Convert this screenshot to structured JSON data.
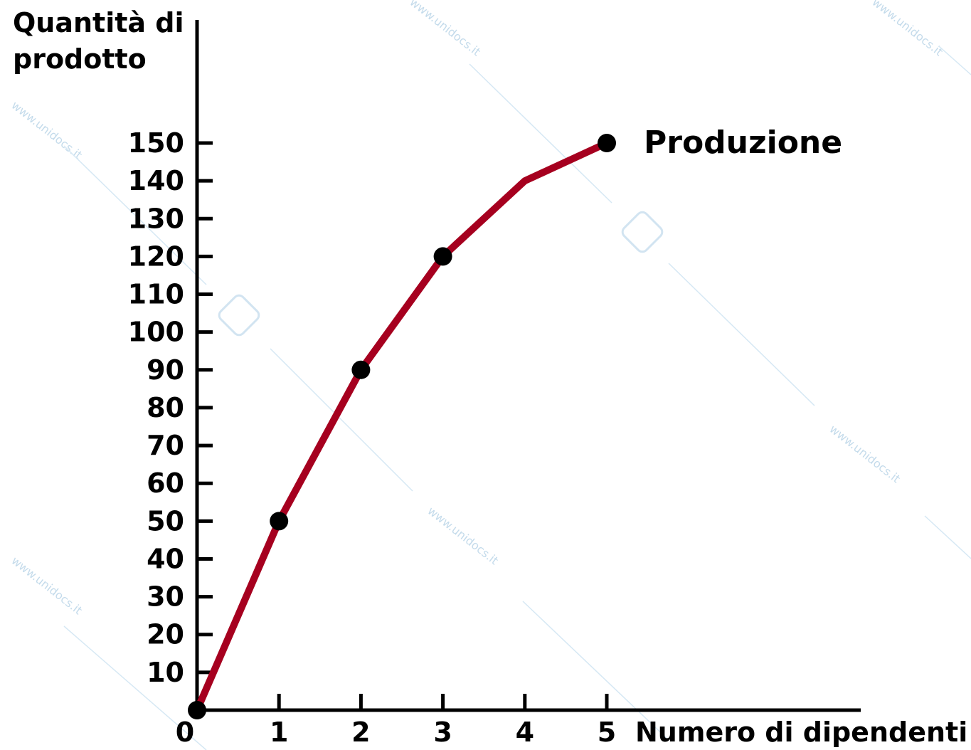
{
  "chart_data": {
    "type": "line",
    "ylabel_lines": [
      "Quantità di",
      "prodotto"
    ],
    "xlabel": "Numero di dipendenti",
    "x": [
      0,
      1,
      2,
      3,
      4,
      5
    ],
    "x_tick_labels": [
      "0",
      "1",
      "2",
      "3",
      "4",
      "5"
    ],
    "y_tick_labels": [
      "10",
      "20",
      "30",
      "40",
      "50",
      "60",
      "70",
      "80",
      "90",
      "100",
      "110",
      "120",
      "130",
      "140",
      "150"
    ],
    "y_ticks": [
      10,
      20,
      30,
      40,
      50,
      60,
      70,
      80,
      90,
      100,
      110,
      120,
      130,
      140,
      150
    ],
    "ylim": [
      0,
      150
    ],
    "xlim": [
      0,
      5
    ],
    "grid": false,
    "series": [
      {
        "name": "Produzione",
        "color": "#a6001f",
        "values": [
          0,
          50,
          90,
          120,
          140,
          150
        ],
        "marked_points": [
          0,
          1,
          2,
          3,
          5
        ]
      }
    ]
  },
  "watermark": {
    "text": "www.unidocs.it"
  }
}
